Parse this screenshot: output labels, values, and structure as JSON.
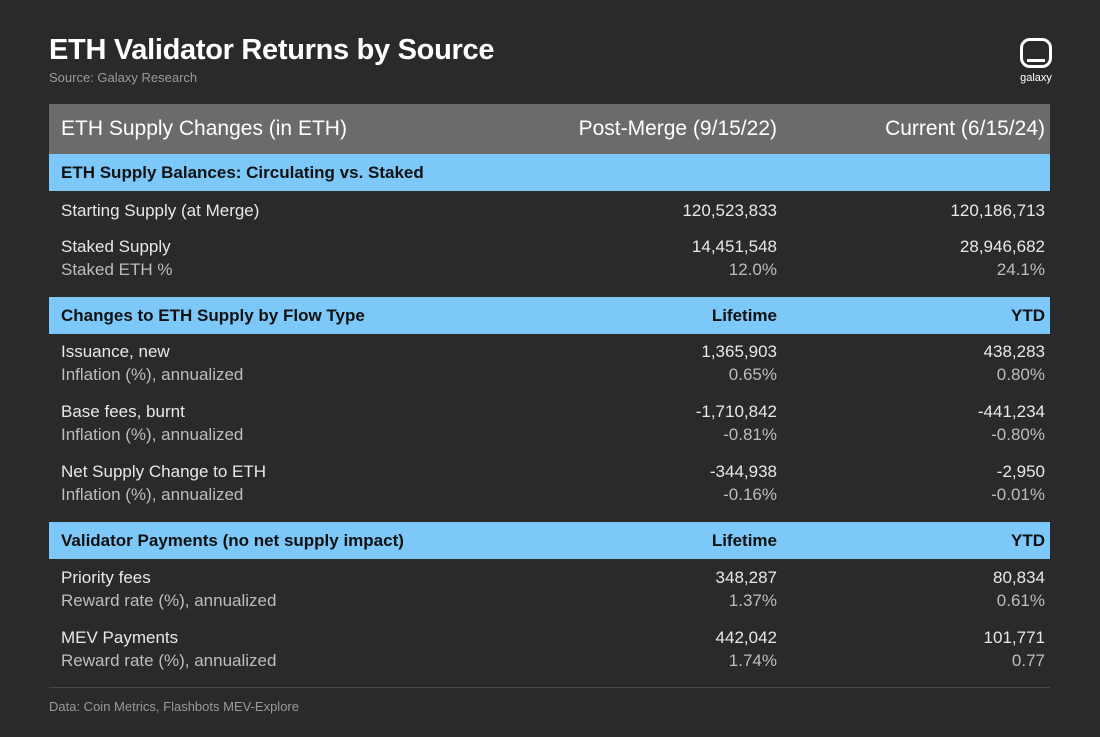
{
  "title": "ETH Validator Returns by Source",
  "subtitle": "Source: Galaxy Research",
  "logo_text": "galaxy",
  "footer": "Data: Coin Metrics, Flashbots MEV-Explore",
  "chart_data": {
    "type": "table",
    "header": [
      "ETH Supply Changes (in ETH)",
      "Post-Merge (9/15/22)",
      "Current (6/15/24)"
    ],
    "sections": [
      {
        "title": "ETH Supply Balances: Circulating vs. Staked",
        "col2": "",
        "col3": "",
        "rows": [
          {
            "label": "Starting Supply (at Merge)",
            "v2": "120,523,833",
            "v3": "120,186,713"
          },
          {
            "label": "Staked Supply",
            "v2": "14,451,548",
            "v3": "28,946,682",
            "sublabel": "Staked ETH %",
            "s2": "12.0%",
            "s3": "24.1%"
          }
        ]
      },
      {
        "title": "Changes to ETH Supply by Flow Type",
        "col2": "Lifetime",
        "col3": "YTD",
        "rows": [
          {
            "label": "Issuance, new",
            "v2": "1,365,903",
            "v3": "438,283",
            "sublabel": "Inflation (%), annualized",
            "s2": "0.65%",
            "s3": "0.80%"
          },
          {
            "label": "Base fees, burnt",
            "v2": "-1,710,842",
            "v3": "-441,234",
            "sublabel": "Inflation (%), annualized",
            "s2": "-0.81%",
            "s3": "-0.80%"
          },
          {
            "label": "Net Supply Change to ETH",
            "v2": "-344,938",
            "v3": "-2,950",
            "sublabel": "Inflation (%), annualized",
            "s2": "-0.16%",
            "s3": "-0.01%"
          }
        ]
      },
      {
        "title": "Validator Payments (no net supply impact)",
        "col2": "Lifetime",
        "col3": "YTD",
        "rows": [
          {
            "label": "Priority fees",
            "v2": "348,287",
            "v3": "80,834",
            "sublabel": "Reward rate (%), annualized",
            "s2": "1.37%",
            "s3": "0.61%"
          },
          {
            "label": "MEV Payments",
            "v2": "442,042",
            "v3": "101,771",
            "sublabel": "Reward rate (%), annualized",
            "s2": "1.74%",
            "s3": "0.77"
          }
        ]
      }
    ]
  }
}
